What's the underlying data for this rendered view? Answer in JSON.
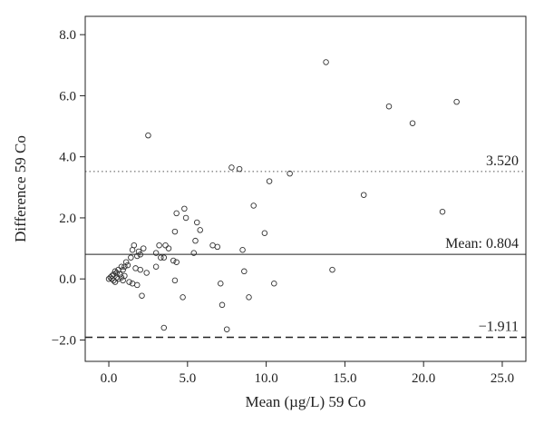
{
  "chart_data": {
    "type": "scatter",
    "title": "",
    "xlabel": "Mean (µg/L) 59 Co",
    "ylabel": "Difference 59 Co",
    "xlim": [
      -1.5,
      26.5
    ],
    "ylim": [
      -2.7,
      8.6
    ],
    "x_ticks": [
      {
        "value": 0,
        "label": "0.0"
      },
      {
        "value": 5,
        "label": "5.0"
      },
      {
        "value": 10,
        "label": "10.0"
      },
      {
        "value": 15,
        "label": "15.0"
      },
      {
        "value": 20,
        "label": "20.0"
      },
      {
        "value": 25,
        "label": "25.0"
      }
    ],
    "y_ticks": [
      {
        "value": -2,
        "label": "−2.0"
      },
      {
        "value": 0,
        "label": "0.0"
      },
      {
        "value": 2,
        "label": "2.0"
      },
      {
        "value": 4,
        "label": "4.0"
      },
      {
        "value": 6,
        "label": "6.0"
      },
      {
        "value": 8,
        "label": "8.0"
      }
    ],
    "grid": false,
    "reference_lines": [
      {
        "value": 3.52,
        "label": "3.520",
        "style": "dotted"
      },
      {
        "value": 0.804,
        "label": "Mean: 0.804",
        "style": "solid"
      },
      {
        "value": -1.911,
        "label": "−1.911",
        "style": "dashed"
      }
    ],
    "points": [
      [
        13.8,
        7.1
      ],
      [
        22.1,
        5.8
      ],
      [
        17.8,
        5.65
      ],
      [
        19.3,
        5.1
      ],
      [
        2.5,
        4.7
      ],
      [
        7.8,
        3.65
      ],
      [
        8.3,
        3.6
      ],
      [
        11.5,
        3.45
      ],
      [
        10.2,
        3.2
      ],
      [
        16.2,
        2.75
      ],
      [
        9.2,
        2.4
      ],
      [
        4.8,
        2.3
      ],
      [
        21.2,
        2.2
      ],
      [
        4.3,
        2.15
      ],
      [
        4.9,
        2.0
      ],
      [
        5.6,
        1.85
      ],
      [
        5.8,
        1.6
      ],
      [
        4.2,
        1.55
      ],
      [
        9.9,
        1.5
      ],
      [
        5.5,
        1.25
      ],
      [
        3.2,
        1.1
      ],
      [
        3.6,
        1.1
      ],
      [
        3.8,
        1.0
      ],
      [
        1.6,
        1.1
      ],
      [
        2.2,
        1.0
      ],
      [
        6.6,
        1.1
      ],
      [
        6.9,
        1.05
      ],
      [
        8.5,
        0.95
      ],
      [
        1.5,
        0.95
      ],
      [
        1.9,
        0.9
      ],
      [
        2.0,
        0.8
      ],
      [
        1.8,
        0.75
      ],
      [
        1.4,
        0.7
      ],
      [
        3.0,
        0.85
      ],
      [
        5.4,
        0.85
      ],
      [
        3.3,
        0.7
      ],
      [
        3.5,
        0.7
      ],
      [
        4.1,
        0.6
      ],
      [
        4.3,
        0.55
      ],
      [
        1.1,
        0.55
      ],
      [
        1.2,
        0.45
      ],
      [
        1.0,
        0.4
      ],
      [
        0.8,
        0.4
      ],
      [
        0.9,
        0.3
      ],
      [
        0.6,
        0.3
      ],
      [
        0.4,
        0.25
      ],
      [
        3.0,
        0.4
      ],
      [
        1.7,
        0.35
      ],
      [
        2.0,
        0.3
      ],
      [
        14.2,
        0.3
      ],
      [
        8.6,
        0.25
      ],
      [
        2.4,
        0.2
      ],
      [
        0.5,
        0.2
      ],
      [
        0.3,
        0.15
      ],
      [
        0.7,
        0.15
      ],
      [
        0.2,
        0.1
      ],
      [
        0.1,
        0.05
      ],
      [
        0.0,
        0.0
      ],
      [
        0.2,
        0.0
      ],
      [
        0.3,
        -0.05
      ],
      [
        0.5,
        0.05
      ],
      [
        0.6,
        0.0
      ],
      [
        0.8,
        0.05
      ],
      [
        1.0,
        0.1
      ],
      [
        0.9,
        -0.05
      ],
      [
        1.3,
        -0.1
      ],
      [
        0.4,
        -0.1
      ],
      [
        1.5,
        -0.15
      ],
      [
        1.8,
        -0.2
      ],
      [
        4.2,
        -0.05
      ],
      [
        7.1,
        -0.15
      ],
      [
        10.5,
        -0.15
      ],
      [
        2.1,
        -0.55
      ],
      [
        4.7,
        -0.6
      ],
      [
        8.9,
        -0.6
      ],
      [
        7.2,
        -0.85
      ],
      [
        3.5,
        -1.6
      ],
      [
        7.5,
        -1.65
      ]
    ]
  }
}
